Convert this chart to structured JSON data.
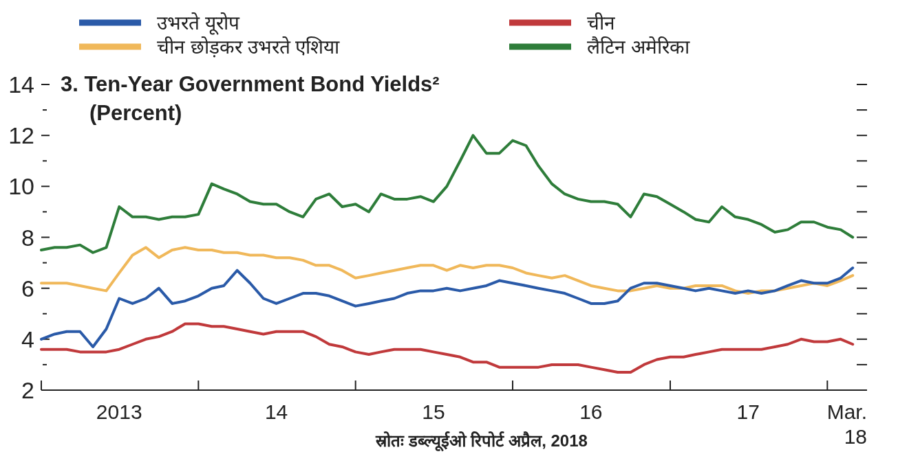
{
  "chart_data": {
    "type": "line",
    "title": "3. Ten-Year Government Bond Yields²",
    "subtitle": "(Percent)",
    "annotations": [
      "स्रोतः डब्ल्यूईओ रिपोर्ट अप्रैल, 2018"
    ],
    "legend": "top",
    "x": [
      "2013-01",
      "2013-02",
      "2013-03",
      "2013-04",
      "2013-05",
      "2013-06",
      "2013-07",
      "2013-08",
      "2013-09",
      "2013-10",
      "2013-11",
      "2013-12",
      "2014-01",
      "2014-02",
      "2014-03",
      "2014-04",
      "2014-05",
      "2014-06",
      "2014-07",
      "2014-08",
      "2014-09",
      "2014-10",
      "2014-11",
      "2014-12",
      "2015-01",
      "2015-02",
      "2015-03",
      "2015-04",
      "2015-05",
      "2015-06",
      "2015-07",
      "2015-08",
      "2015-09",
      "2015-10",
      "2015-11",
      "2015-12",
      "2016-01",
      "2016-02",
      "2016-03",
      "2016-04",
      "2016-05",
      "2016-06",
      "2016-07",
      "2016-08",
      "2016-09",
      "2016-10",
      "2016-11",
      "2016-12",
      "2017-01",
      "2017-02",
      "2017-03",
      "2017-04",
      "2017-05",
      "2017-06",
      "2017-07",
      "2017-08",
      "2017-09",
      "2017-10",
      "2017-11",
      "2017-12",
      "2018-01",
      "2018-02",
      "2018-03"
    ],
    "xlim": [
      "2013-01-01",
      "2018-03-31"
    ],
    "xticks": [
      {
        "value": "2013-01-01",
        "label": null
      },
      {
        "value": "2013-07-01",
        "label": "2013"
      },
      {
        "value": "2014-01-01",
        "label": null
      },
      {
        "value": "2014-07-01",
        "label": "14"
      },
      {
        "value": "2015-01-01",
        "label": null
      },
      {
        "value": "2015-07-01",
        "label": "15"
      },
      {
        "value": "2016-01-01",
        "label": null
      },
      {
        "value": "2016-07-01",
        "label": "16"
      },
      {
        "value": "2017-01-01",
        "label": null
      },
      {
        "value": "2017-07-01",
        "label": "17"
      },
      {
        "value": "2018-01-01",
        "label": null
      },
      {
        "value": "2018-03-31",
        "label": "Mar.\n18"
      }
    ],
    "ylim": [
      2,
      14
    ],
    "yticks": [
      2,
      {
        "value": 3,
        "label": null
      },
      4,
      {
        "value": 5,
        "label": null
      },
      6,
      {
        "value": 7,
        "label": null
      },
      8,
      {
        "value": 9,
        "label": null
      },
      10,
      {
        "value": 11,
        "label": null
      },
      12,
      {
        "value": 13,
        "label": null
      },
      14
    ],
    "series": [
      {
        "name": "उभरते यूरोप",
        "color": "#2a5aa8",
        "values": [
          4.0,
          4.2,
          4.3,
          4.3,
          3.7,
          4.4,
          5.6,
          5.4,
          5.6,
          6.0,
          5.4,
          5.5,
          5.7,
          6.0,
          6.1,
          6.7,
          6.2,
          5.6,
          5.4,
          5.6,
          5.8,
          5.8,
          5.7,
          5.5,
          5.3,
          5.4,
          5.5,
          5.6,
          5.8,
          5.9,
          5.9,
          6.0,
          5.9,
          6.0,
          6.1,
          6.3,
          6.2,
          6.1,
          6.0,
          5.9,
          5.8,
          5.6,
          5.4,
          5.4,
          5.5,
          6.0,
          6.2,
          6.2,
          6.1,
          6.0,
          5.9,
          6.0,
          5.9,
          5.8,
          5.9,
          5.8,
          5.9,
          6.1,
          6.3,
          6.2,
          6.2,
          6.4,
          6.8
        ]
      },
      {
        "name": "चीन",
        "color": "#c0393b",
        "values": [
          3.6,
          3.6,
          3.6,
          3.5,
          3.5,
          3.5,
          3.6,
          3.8,
          4.0,
          4.1,
          4.3,
          4.6,
          4.6,
          4.5,
          4.5,
          4.4,
          4.3,
          4.2,
          4.3,
          4.3,
          4.3,
          4.1,
          3.8,
          3.7,
          3.5,
          3.4,
          3.5,
          3.6,
          3.6,
          3.6,
          3.5,
          3.4,
          3.3,
          3.1,
          3.1,
          2.9,
          2.9,
          2.9,
          2.9,
          3.0,
          3.0,
          3.0,
          2.9,
          2.8,
          2.7,
          2.7,
          3.0,
          3.2,
          3.3,
          3.3,
          3.4,
          3.5,
          3.6,
          3.6,
          3.6,
          3.6,
          3.7,
          3.8,
          4.0,
          3.9,
          3.9,
          4.0,
          3.8
        ]
      },
      {
        "name": "चीन छोड़कर उभरते एशिया",
        "color": "#f0b85a",
        "values": [
          6.2,
          6.2,
          6.2,
          6.1,
          6.0,
          5.9,
          6.6,
          7.3,
          7.6,
          7.2,
          7.5,
          7.6,
          7.5,
          7.5,
          7.4,
          7.4,
          7.3,
          7.3,
          7.2,
          7.2,
          7.1,
          6.9,
          6.9,
          6.7,
          6.4,
          6.5,
          6.6,
          6.7,
          6.8,
          6.9,
          6.9,
          6.7,
          6.9,
          6.8,
          6.9,
          6.9,
          6.8,
          6.6,
          6.5,
          6.4,
          6.5,
          6.3,
          6.1,
          6.0,
          5.9,
          5.9,
          6.0,
          6.1,
          6.0,
          6.0,
          6.1,
          6.1,
          6.1,
          5.9,
          5.8,
          5.9,
          5.9,
          6.0,
          6.1,
          6.2,
          6.1,
          6.3,
          6.5
        ]
      },
      {
        "name": "लैटिन अमेरिका",
        "color": "#2e7d3a",
        "values": [
          7.5,
          7.6,
          7.6,
          7.7,
          7.4,
          7.6,
          9.2,
          8.8,
          8.8,
          8.7,
          8.8,
          8.8,
          8.9,
          10.1,
          9.9,
          9.7,
          9.4,
          9.3,
          9.3,
          9.0,
          8.8,
          9.5,
          9.7,
          9.2,
          9.3,
          9.0,
          9.7,
          9.5,
          9.5,
          9.6,
          9.4,
          10.0,
          11.0,
          12.0,
          11.3,
          11.3,
          11.8,
          11.6,
          10.8,
          10.1,
          9.7,
          9.5,
          9.4,
          9.4,
          9.3,
          8.8,
          9.7,
          9.6,
          9.3,
          9.0,
          8.7,
          8.6,
          9.2,
          8.8,
          8.7,
          8.5,
          8.2,
          8.3,
          8.6,
          8.6,
          8.4,
          8.3,
          8.0
        ]
      }
    ]
  }
}
